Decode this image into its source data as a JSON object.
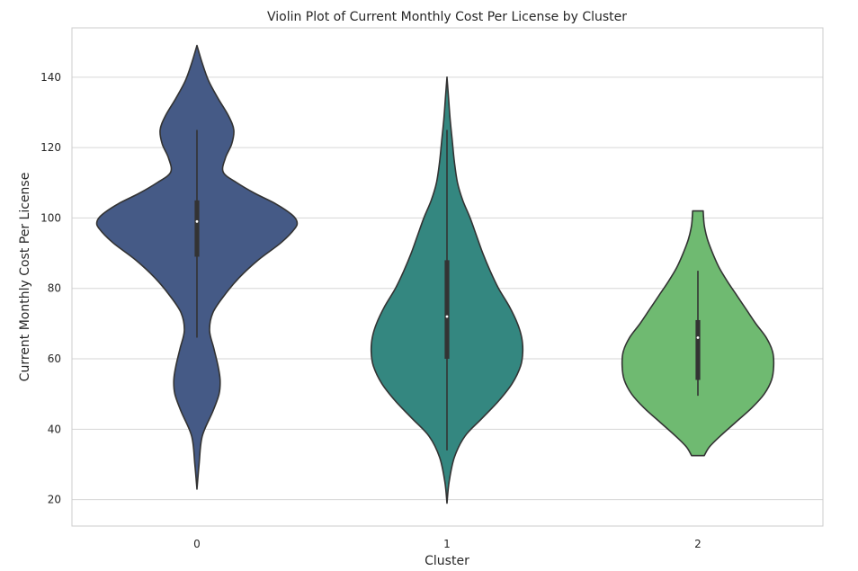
{
  "chart_data": {
    "type": "violin",
    "title": "Violin Plot of Current Monthly Cost Per License by Cluster",
    "xlabel": "Cluster",
    "ylabel": "Current Monthly Cost Per License",
    "categories": [
      "0",
      "1",
      "2"
    ],
    "yticks": [
      20,
      40,
      60,
      80,
      100,
      120,
      140
    ],
    "ylim": [
      12.5,
      154
    ],
    "grid": "horizontal",
    "legend": "none",
    "colors": [
      "#455a86",
      "#348780",
      "#6fba71"
    ],
    "outline_color": "#333333",
    "violins": [
      {
        "category": "0",
        "min_extent": 23,
        "max_extent": 149,
        "whisker_low": 66,
        "q1": 89,
        "median": 99,
        "q3": 105,
        "whisker_high": 125,
        "density_profile": [
          {
            "y": 23,
            "w": 0.0
          },
          {
            "y": 30,
            "w": 0.02
          },
          {
            "y": 38,
            "w": 0.05
          },
          {
            "y": 45,
            "w": 0.15
          },
          {
            "y": 50,
            "w": 0.21
          },
          {
            "y": 54,
            "w": 0.22
          },
          {
            "y": 58,
            "w": 0.2
          },
          {
            "y": 63,
            "w": 0.16
          },
          {
            "y": 68,
            "w": 0.12
          },
          {
            "y": 73,
            "w": 0.15
          },
          {
            "y": 78,
            "w": 0.26
          },
          {
            "y": 83,
            "w": 0.4
          },
          {
            "y": 88,
            "w": 0.58
          },
          {
            "y": 93,
            "w": 0.8
          },
          {
            "y": 97,
            "w": 0.93
          },
          {
            "y": 99,
            "w": 0.95
          },
          {
            "y": 101,
            "w": 0.9
          },
          {
            "y": 104,
            "w": 0.75
          },
          {
            "y": 107,
            "w": 0.55
          },
          {
            "y": 110,
            "w": 0.38
          },
          {
            "y": 113,
            "w": 0.25
          },
          {
            "y": 117,
            "w": 0.27
          },
          {
            "y": 121,
            "w": 0.33
          },
          {
            "y": 125,
            "w": 0.35
          },
          {
            "y": 129,
            "w": 0.3
          },
          {
            "y": 134,
            "w": 0.2
          },
          {
            "y": 139,
            "w": 0.11
          },
          {
            "y": 144,
            "w": 0.05
          },
          {
            "y": 149,
            "w": 0.0
          }
        ]
      },
      {
        "category": "1",
        "min_extent": 19,
        "max_extent": 140,
        "whisker_low": 34,
        "q1": 60,
        "median": 72,
        "q3": 88,
        "whisker_high": 125,
        "density_profile": [
          {
            "y": 19,
            "w": 0.0
          },
          {
            "y": 25,
            "w": 0.02
          },
          {
            "y": 32,
            "w": 0.07
          },
          {
            "y": 38,
            "w": 0.17
          },
          {
            "y": 43,
            "w": 0.33
          },
          {
            "y": 48,
            "w": 0.49
          },
          {
            "y": 53,
            "w": 0.62
          },
          {
            "y": 58,
            "w": 0.7
          },
          {
            "y": 62,
            "w": 0.72
          },
          {
            "y": 66,
            "w": 0.71
          },
          {
            "y": 70,
            "w": 0.67
          },
          {
            "y": 75,
            "w": 0.59
          },
          {
            "y": 80,
            "w": 0.49
          },
          {
            "y": 85,
            "w": 0.41
          },
          {
            "y": 90,
            "w": 0.34
          },
          {
            "y": 95,
            "w": 0.28
          },
          {
            "y": 100,
            "w": 0.22
          },
          {
            "y": 105,
            "w": 0.15
          },
          {
            "y": 110,
            "w": 0.1
          },
          {
            "y": 116,
            "w": 0.07
          },
          {
            "y": 122,
            "w": 0.05
          },
          {
            "y": 128,
            "w": 0.03
          },
          {
            "y": 134,
            "w": 0.015
          },
          {
            "y": 140,
            "w": 0.0
          }
        ]
      },
      {
        "category": "2",
        "min_extent": 32.5,
        "max_extent": 102,
        "whisker_low": 49.5,
        "q1": 54,
        "median": 66,
        "q3": 71,
        "whisker_high": 85,
        "density_profile": [
          {
            "y": 32.5,
            "w": 0.06
          },
          {
            "y": 35,
            "w": 0.11
          },
          {
            "y": 38,
            "w": 0.21
          },
          {
            "y": 42,
            "w": 0.36
          },
          {
            "y": 46,
            "w": 0.51
          },
          {
            "y": 50,
            "w": 0.63
          },
          {
            "y": 54,
            "w": 0.7
          },
          {
            "y": 58,
            "w": 0.72
          },
          {
            "y": 62,
            "w": 0.71
          },
          {
            "y": 66,
            "w": 0.65
          },
          {
            "y": 70,
            "w": 0.55
          },
          {
            "y": 74,
            "w": 0.46
          },
          {
            "y": 78,
            "w": 0.37
          },
          {
            "y": 82,
            "w": 0.28
          },
          {
            "y": 86,
            "w": 0.2
          },
          {
            "y": 90,
            "w": 0.14
          },
          {
            "y": 94,
            "w": 0.09
          },
          {
            "y": 98,
            "w": 0.06
          },
          {
            "y": 102,
            "w": 0.05
          }
        ]
      }
    ]
  }
}
